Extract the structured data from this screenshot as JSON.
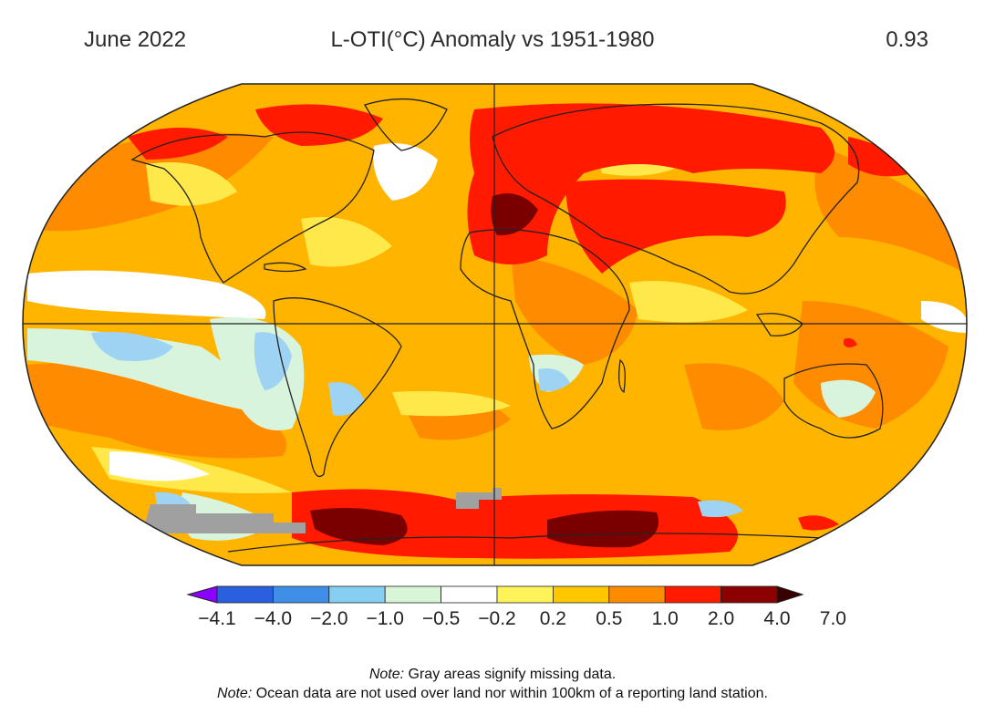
{
  "header": {
    "left": "June 2022",
    "center": "L-OTI(°C) Anomaly vs 1951-1980",
    "right": "0.93"
  },
  "colorbar": {
    "colors": [
      "#8c00ff",
      "#2a5fe0",
      "#3f8fe8",
      "#86cff2",
      "#d8f5d8",
      "#ffffff",
      "#fff35a",
      "#ffc700",
      "#ff8c00",
      "#ff1a00",
      "#8b0000",
      "#3a0000"
    ],
    "ticks": [
      "−4.1",
      "−4.0",
      "−2.0",
      "−1.0",
      "−0.5",
      "−0.2",
      "0.2",
      "0.5",
      "1.0",
      "2.0",
      "4.0",
      "7.0"
    ]
  },
  "notes": [
    {
      "label": "Note:",
      "text": " Gray areas signify missing data."
    },
    {
      "label": "Note:",
      "text": " Ocean data are not used over land nor within 100km of a reporting land station."
    }
  ],
  "map": {
    "projection": "Robinson (global)",
    "colors": {
      "base": "#ffb400",
      "orange": "#ff8c00",
      "red": "#ff1a00",
      "darkred": "#7a0000",
      "yellow": "#ffe94a",
      "white": "#ffffff",
      "paleGreen": "#d9f4dc",
      "lightBlue": "#9fd3f3",
      "gray": "#a0a0a0",
      "coast": "#222222"
    }
  }
}
